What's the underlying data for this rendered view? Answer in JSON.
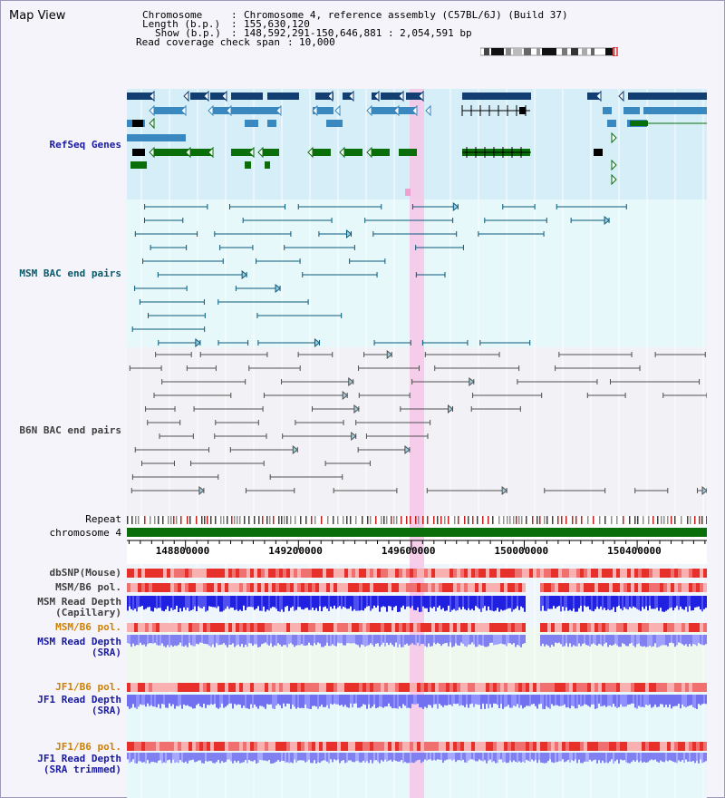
{
  "page": {
    "title": "Map View"
  },
  "header": {
    "chromosome_label": "Chromosome",
    "chromosome_value": "Chromosome 4, reference assembly (C57BL/6J) (Build 37)",
    "length_label": "Length (b.p.)",
    "length_value": "155,630,120",
    "show_label": "Show (b.p.)",
    "show_value": "148,592,291-150,646,881 : 2,054,591 bp",
    "coverage_label": "Read coverage check span",
    "coverage_value": "10,000"
  },
  "tracks": {
    "refseq": "RefSeq Genes",
    "msm_bac": "MSM BAC end pairs",
    "b6n_bac": "B6N BAC end pairs",
    "repeat": "Repeat",
    "chromosome": "chromosome 4",
    "dbsnp": "dbSNP(Mouse)",
    "msm_pol": "MSM/B6 pol.",
    "msm_depth_cap": "MSM Read Depth\n(Capillary)",
    "msm_pol_sra": "MSM/B6 pol.",
    "msm_depth_sra": "MSM Read Depth\n(SRA)",
    "jf1_pol": "JF1/B6 pol.",
    "jf1_depth": "JF1 Read Depth\n(SRA)",
    "jf1_pol_trim": "JF1/B6 pol.",
    "jf1_depth_trim": "JF1 Read Depth\n(SRA trimmed)"
  },
  "axis": {
    "start": 148592291,
    "end": 150646881,
    "ticks": [
      "148800000",
      "149200000",
      "149600000",
      "150000000",
      "150400000"
    ],
    "tick_values": [
      148800000,
      149200000,
      149600000,
      150000000,
      150400000
    ]
  },
  "colors": {
    "label_blue": "#1a1aa0",
    "label_teal": "#0a5a6a",
    "label_gray": "#404040",
    "label_orange": "#d08000",
    "highlight": "#f6c6e6",
    "refseq_bg": "#d6eef8",
    "bac_bg": "#e6f8fa",
    "b6n_bg": "#f2f2f6",
    "chrom_green": "#0a6e0a"
  }
}
